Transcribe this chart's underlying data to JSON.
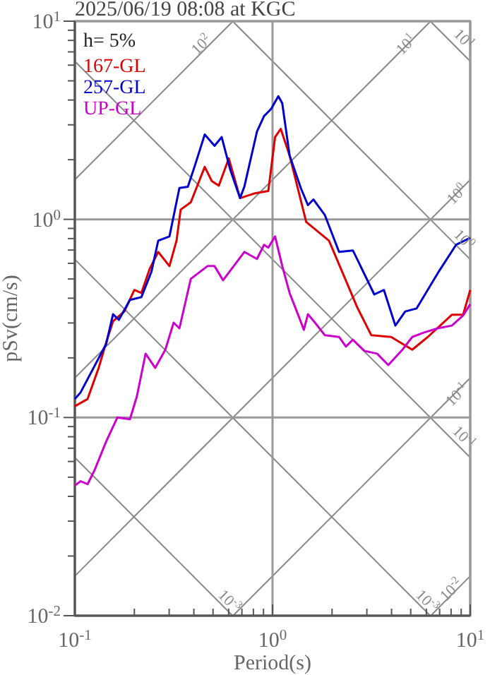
{
  "chart_data": {
    "type": "line",
    "title": "2025/06/19 08:08 at KGC",
    "xlabel": "Period(s)",
    "ylabel": "pSv(cm/s)",
    "log": "xy",
    "grid": "major",
    "legend": "top left",
    "line_style": "solid",
    "xlim": [
      0.1,
      10
    ],
    "ylim": [
      0.01,
      10
    ],
    "xticks": [
      {
        "value": 0.1,
        "label": "10$^{-1}$"
      },
      {
        "value": 0.2,
        "label": null
      },
      {
        "value": 0.3,
        "label": null
      },
      {
        "value": 0.4,
        "label": null
      },
      {
        "value": 0.5,
        "label": null
      },
      {
        "value": 0.6,
        "label": null
      },
      {
        "value": 0.7,
        "label": null
      },
      {
        "value": 0.8,
        "label": null
      },
      {
        "value": 0.9,
        "label": null
      },
      {
        "value": 1,
        "label": "10$^{0}$"
      },
      {
        "value": 2,
        "label": null
      },
      {
        "value": 3,
        "label": null
      },
      {
        "value": 4,
        "label": null
      },
      {
        "value": 5,
        "label": null
      },
      {
        "value": 6,
        "label": null
      },
      {
        "value": 7,
        "label": null
      },
      {
        "value": 8,
        "label": null
      },
      {
        "value": 9,
        "label": null
      },
      {
        "value": 10,
        "label": "10$^{1}$"
      }
    ],
    "yticks": [
      {
        "value": 0.01,
        "label": "10$^{-2}$"
      },
      {
        "value": 0.02,
        "label": null
      },
      {
        "value": 0.03,
        "label": null
      },
      {
        "value": 0.04,
        "label": null
      },
      {
        "value": 0.05,
        "label": null
      },
      {
        "value": 0.06,
        "label": null
      },
      {
        "value": 0.07,
        "label": null
      },
      {
        "value": 0.08,
        "label": null
      },
      {
        "value": 0.09,
        "label": null
      },
      {
        "value": 0.1,
        "label": "10$^{-1}$"
      },
      {
        "value": 0.2,
        "label": null
      },
      {
        "value": 0.3,
        "label": null
      },
      {
        "value": 0.4,
        "label": null
      },
      {
        "value": 0.5,
        "label": null
      },
      {
        "value": 0.6,
        "label": null
      },
      {
        "value": 0.7,
        "label": null
      },
      {
        "value": 0.8,
        "label": null
      },
      {
        "value": 0.9,
        "label": null
      },
      {
        "value": 1,
        "label": "10$^{0}$"
      },
      {
        "value": 2,
        "label": null
      },
      {
        "value": 3,
        "label": null
      },
      {
        "value": 4,
        "label": null
      },
      {
        "value": 5,
        "label": null
      },
      {
        "value": 6,
        "label": null
      },
      {
        "value": 7,
        "label": null
      },
      {
        "value": 8,
        "label": null
      },
      {
        "value": 9,
        "label": null
      },
      {
        "value": 10,
        "label": "10$^{1}$"
      }
    ],
    "annotations": [
      "h= 5%",
      "10$^{2}$",
      "10$^{1}$",
      "10$^{1}$",
      "10$^{0}$",
      "10$^{0}$",
      "10$^{-1}$",
      "10$^{-1}$",
      "10$^{-3}$",
      "10$^{-3}$",
      "10$^{-2}$"
    ],
    "series": [
      {
        "name": "167-GL",
        "color": "#dd0000",
        "x": [
          0.1,
          0.116,
          0.132,
          0.144,
          0.156,
          0.178,
          0.2,
          0.217,
          0.239,
          0.264,
          0.301,
          0.327,
          0.343,
          0.386,
          0.454,
          0.493,
          0.535,
          0.601,
          0.685,
          0.807,
          0.952,
          1.03,
          1.1,
          1.22,
          1.48,
          1.93,
          2.68,
          3.16,
          3.98,
          5.09,
          6.1,
          8.07,
          9.2,
          10
        ],
        "values": [
          0.114,
          0.124,
          0.178,
          0.239,
          0.306,
          0.343,
          0.44,
          0.425,
          0.562,
          0.685,
          0.581,
          0.782,
          1.12,
          1.22,
          1.84,
          1.56,
          1.48,
          2.03,
          1.28,
          1.35,
          1.39,
          2.6,
          2.86,
          2.1,
          0.97,
          0.78,
          0.36,
          0.26,
          0.255,
          0.22,
          0.255,
          0.33,
          0.33,
          0.44
        ]
      },
      {
        "name": "257-GL",
        "color": "#0000cc",
        "x": [
          0.1,
          0.107,
          0.144,
          0.156,
          0.167,
          0.19,
          0.217,
          0.244,
          0.264,
          0.301,
          0.338,
          0.373,
          0.405,
          0.454,
          0.509,
          0.553,
          0.611,
          0.685,
          0.72,
          0.834,
          0.906,
          0.984,
          1.07,
          1.12,
          1.22,
          1.39,
          1.51,
          1.61,
          1.84,
          2.17,
          2.55,
          3.27,
          3.66,
          4.18,
          4.69,
          5.35,
          6.85,
          8.48,
          10
        ],
        "values": [
          0.124,
          0.134,
          0.235,
          0.332,
          0.311,
          0.392,
          0.405,
          0.544,
          0.78,
          0.82,
          1.44,
          1.46,
          1.87,
          2.68,
          2.35,
          2.6,
          1.78,
          1.28,
          1.46,
          2.77,
          3.32,
          3.61,
          4.18,
          3.85,
          2.1,
          1.44,
          1.18,
          1.26,
          1.05,
          0.685,
          0.697,
          0.418,
          0.44,
          0.291,
          0.343,
          0.355,
          0.535,
          0.744,
          0.807
        ]
      },
      {
        "name": "UP-GL",
        "color": "#cc00cc",
        "x": [
          0.1,
          0.107,
          0.116,
          0.126,
          0.144,
          0.164,
          0.19,
          0.206,
          0.228,
          0.255,
          0.287,
          0.316,
          0.338,
          0.386,
          0.469,
          0.509,
          0.562,
          0.72,
          0.834,
          0.906,
          0.952,
          1.03,
          1.12,
          1.22,
          1.37,
          1.44,
          1.51,
          1.64,
          1.84,
          2.17,
          2.35,
          2.55,
          2.91,
          3.38,
          3.85,
          4.54,
          5.09,
          5.81,
          6.85,
          8.07,
          9.2,
          10
        ],
        "values": [
          0.0454,
          0.0477,
          0.0461,
          0.0544,
          0.0756,
          0.1,
          0.098,
          0.128,
          0.21,
          0.178,
          0.22,
          0.301,
          0.282,
          0.501,
          0.581,
          0.581,
          0.493,
          0.685,
          0.631,
          0.744,
          0.72,
          0.82,
          0.581,
          0.425,
          0.316,
          0.277,
          0.332,
          0.301,
          0.26,
          0.255,
          0.228,
          0.247,
          0.217,
          0.21,
          0.184,
          0.22,
          0.255,
          0.268,
          0.282,
          0.291,
          0.327,
          0.373
        ]
      }
    ]
  }
}
